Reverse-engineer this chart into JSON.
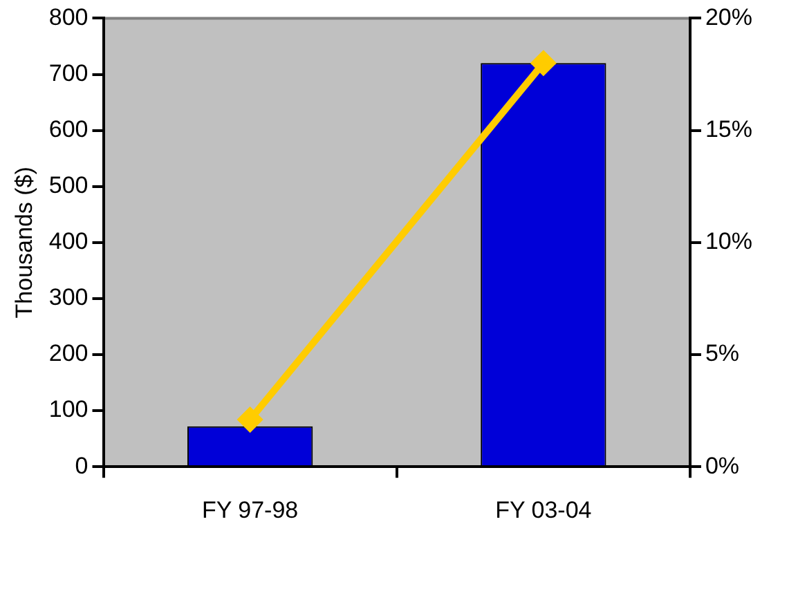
{
  "chart_data": {
    "type": "bar",
    "categories": [
      "FY 97-98",
      "FY 03-04"
    ],
    "ylabel": "Thousands ($)",
    "ylim": [
      0,
      800
    ],
    "yticks": [
      0,
      100,
      200,
      300,
      400,
      500,
      600,
      700,
      800
    ],
    "y2lim": [
      0,
      20
    ],
    "y2ticks": [
      {
        "value": 0,
        "label": "0%"
      },
      {
        "value": 5,
        "label": "5%"
      },
      {
        "value": 10,
        "label": "10%"
      },
      {
        "value": 15,
        "label": "15%"
      },
      {
        "value": 20,
        "label": "20%"
      }
    ],
    "grid": false,
    "legend": false,
    "series": [
      {
        "color": "#0000d8",
        "values": [
          72,
          720
        ]
      },
      {
        "type": "line",
        "axis": "y2",
        "color": "#ffcc00",
        "marker": "diamond",
        "values": [
          2.1,
          18
        ]
      }
    ]
  }
}
